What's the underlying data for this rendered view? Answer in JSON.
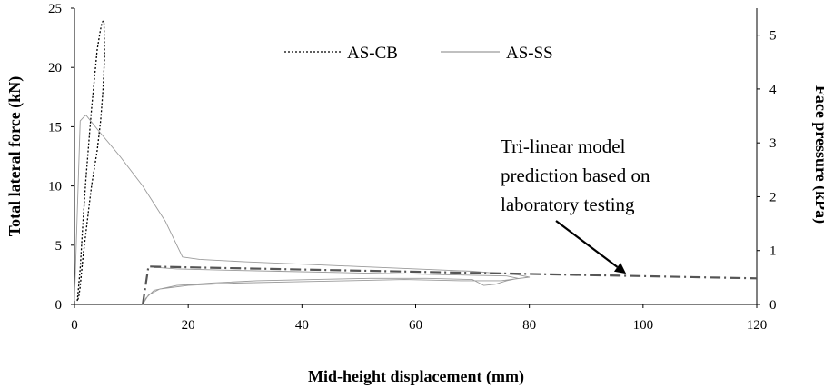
{
  "chart_data": {
    "type": "line",
    "xlabel": "Mid-height displacement (mm)",
    "ylabel": "Total lateral force (kN)",
    "y2label": "Face pressure (kPa)",
    "xlim": [
      0,
      120
    ],
    "ylim": [
      0,
      25
    ],
    "y2lim": [
      0,
      5.5
    ],
    "x_ticks": [
      "0",
      "20",
      "40",
      "60",
      "80",
      "100",
      "120"
    ],
    "y_ticks": [
      "0",
      "5",
      "10",
      "15",
      "20",
      "25"
    ],
    "y2_ticks": [
      "0",
      "1",
      "2",
      "3",
      "4",
      "5"
    ],
    "legend_position": "top-center",
    "grid": false,
    "annotation": {
      "lines": [
        "Tri-linear model",
        "prediction based on",
        "laboratory testing"
      ],
      "arrow_to": [
        97,
        2.6
      ]
    },
    "series": [
      {
        "name": "AS-CB",
        "style": "dotted",
        "color": "#000000",
        "x": [
          0.5,
          1.0,
          1.5,
          2.0,
          2.5,
          3.0,
          3.5,
          4.0,
          4.5,
          4.8,
          5.0,
          5.2,
          5.3,
          5.0,
          4.6,
          4.0,
          3.5,
          3.0,
          2.5,
          2.0,
          1.5,
          1.2,
          1.0,
          0.8,
          0.6,
          0.5
        ],
        "y": [
          0.3,
          3.0,
          7.0,
          10.5,
          13.5,
          16.5,
          19.0,
          21.5,
          23.0,
          23.7,
          23.9,
          23.8,
          21.0,
          18.0,
          15.5,
          13.0,
          11.5,
          10.0,
          8.0,
          6.0,
          4.0,
          2.5,
          1.5,
          0.8,
          0.4,
          0.3
        ]
      },
      {
        "name": "AS-SS",
        "style": "solid",
        "color": "#9a9a9a",
        "x": [
          0,
          1,
          2,
          4,
          8,
          12,
          16,
          19,
          22,
          30,
          40,
          50,
          60,
          70,
          75,
          78,
          80,
          75,
          68,
          58,
          48,
          38,
          28,
          20,
          15,
          13,
          12,
          12.5,
          14,
          18,
          24,
          32,
          42,
          52,
          62,
          70,
          72,
          74,
          76,
          78,
          76,
          66,
          56,
          46,
          36,
          26,
          18,
          15,
          14
        ],
        "y": [
          0.3,
          15.5,
          16.0,
          14.8,
          12.5,
          10.0,
          7.0,
          4.0,
          3.8,
          3.6,
          3.4,
          3.2,
          3.0,
          2.8,
          2.6,
          2.5,
          2.3,
          2.0,
          2.0,
          2.1,
          2.0,
          1.9,
          1.8,
          1.6,
          1.3,
          0.8,
          0.0,
          0.5,
          1.2,
          1.6,
          1.8,
          2.0,
          2.1,
          2.2,
          2.2,
          2.1,
          1.6,
          1.7,
          2.0,
          2.2,
          2.4,
          2.5,
          2.6,
          2.7,
          2.8,
          2.9,
          3.0,
          3.1,
          3.1
        ]
      },
      {
        "name": "",
        "style": "dash-dot",
        "color": "#555555",
        "x": [
          12,
          13,
          120
        ],
        "y": [
          0,
          3.2,
          2.2
        ]
      }
    ]
  }
}
